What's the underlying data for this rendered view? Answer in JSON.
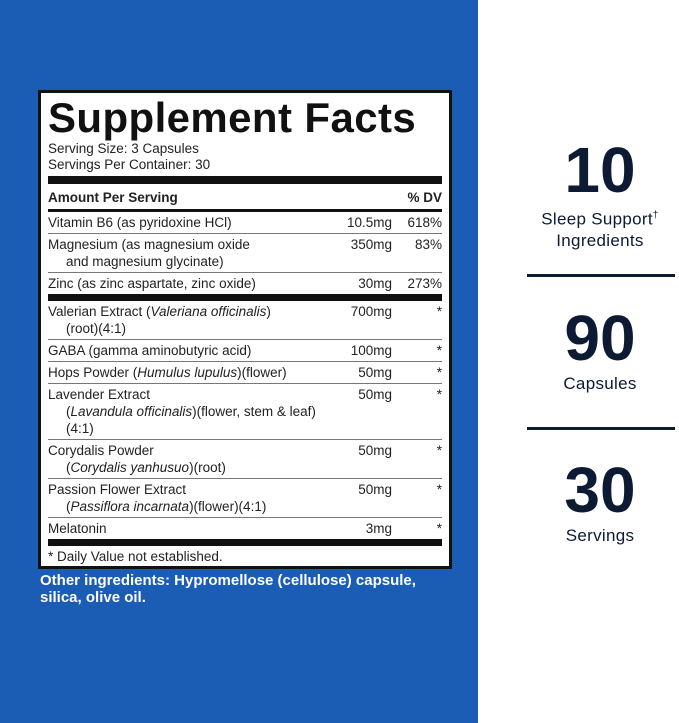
{
  "panel": {
    "title": "Supplement Facts",
    "serving_size": "Serving Size: 3 Capsules",
    "servings_per_container": "Servings Per Container: 30",
    "header": {
      "name": "Amount Per Serving",
      "dv": "% DV"
    },
    "rows": [
      {
        "name": [
          [
            {
              "text": "Vitamin B6 (as pyridoxine HCl)"
            }
          ]
        ],
        "amount": "10.5mg",
        "dv": "618%"
      },
      {
        "name": [
          [
            {
              "text": "Magnesium (as magnesium oxide"
            }
          ],
          [
            {
              "text": "and magnesium glycinate)"
            }
          ]
        ],
        "amount": "350mg",
        "dv": "83%"
      },
      {
        "name": [
          [
            {
              "text": "Zinc (as zinc aspartate, zinc oxide)"
            }
          ]
        ],
        "amount": "30mg",
        "dv": "273%",
        "thick_after": true
      },
      {
        "name": [
          [
            {
              "text": "Valerian Extract ("
            },
            {
              "text": "Valeriana officinalis",
              "italic": true
            },
            {
              "text": ")"
            }
          ],
          [
            {
              "text": "(root)(4:1)"
            }
          ]
        ],
        "amount": "700mg",
        "dv": "*"
      },
      {
        "name": [
          [
            {
              "text": "GABA (gamma aminobutyric acid)"
            }
          ]
        ],
        "amount": "100mg",
        "dv": "*"
      },
      {
        "name": [
          [
            {
              "text": "Hops Powder ("
            },
            {
              "text": "Humulus lupulus",
              "italic": true
            },
            {
              "text": ")(flower)"
            }
          ]
        ],
        "amount": "50mg",
        "dv": "*"
      },
      {
        "name": [
          [
            {
              "text": "Lavender Extract"
            }
          ],
          [
            {
              "text": "("
            },
            {
              "text": "Lavandula officinalis",
              "italic": true
            },
            {
              "text": ")(flower, stem & leaf)(4:1)"
            }
          ]
        ],
        "amount": "50mg",
        "dv": "*"
      },
      {
        "name": [
          [
            {
              "text": "Corydalis Powder"
            }
          ],
          [
            {
              "text": "("
            },
            {
              "text": "Corydalis yanhusuo",
              "italic": true
            },
            {
              "text": ")(root)"
            }
          ]
        ],
        "amount": "50mg",
        "dv": "*"
      },
      {
        "name": [
          [
            {
              "text": "Passion Flower Extract"
            }
          ],
          [
            {
              "text": "("
            },
            {
              "text": "Passiflora incarnata",
              "italic": true
            },
            {
              "text": ")(flower)(4:1)"
            }
          ]
        ],
        "amount": "50mg",
        "dv": "*"
      },
      {
        "name": [
          [
            {
              "text": "Melatonin"
            }
          ]
        ],
        "amount": "3mg",
        "dv": "*",
        "thick_after": true
      }
    ],
    "footnote": "* Daily Value not established."
  },
  "other_ingredients": "Other ingredients: Hypromellose (cellulose) capsule, silica, olive oil.",
  "stats": [
    {
      "number": "10",
      "label": [
        "Sleep Support",
        "Ingredients"
      ],
      "mark": "†"
    },
    {
      "number": "90",
      "label": [
        "Capsules"
      ]
    },
    {
      "number": "30",
      "label": [
        "Servings"
      ]
    }
  ]
}
